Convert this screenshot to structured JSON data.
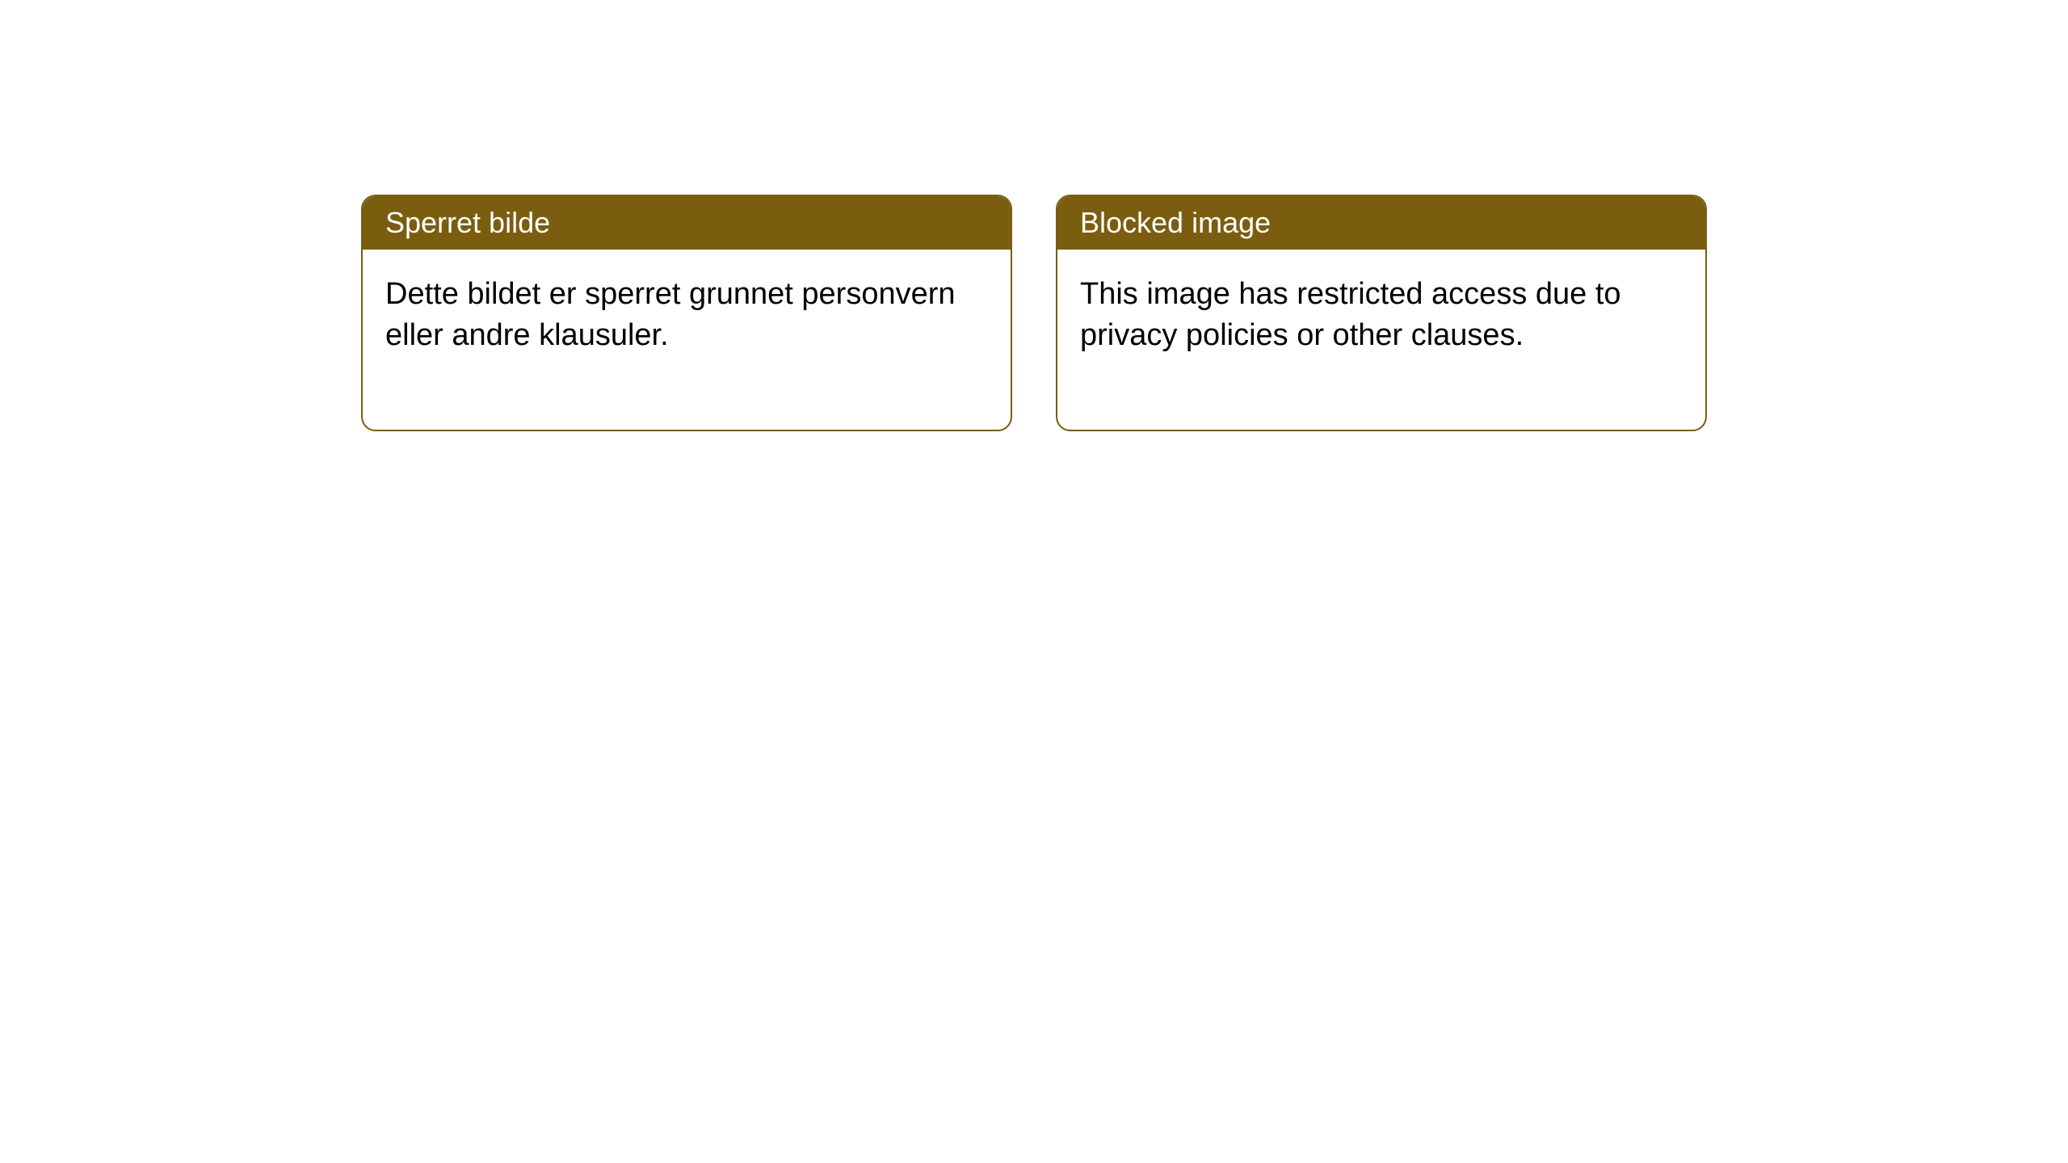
{
  "notices": [
    {
      "header": "Sperret bilde",
      "body": "Dette bildet er sperret grunnet personvern eller andre klausuler."
    },
    {
      "header": "Blocked image",
      "body": "This image has restricted access due to privacy policies or other clauses."
    }
  ],
  "style": {
    "header_bg": "#7a5d0f",
    "header_color": "#ffffff",
    "border_color": "#7a5d0f",
    "body_bg": "#ffffff",
    "body_color": "#000000",
    "border_radius": 18,
    "header_fontsize": 36,
    "body_fontsize": 38
  }
}
